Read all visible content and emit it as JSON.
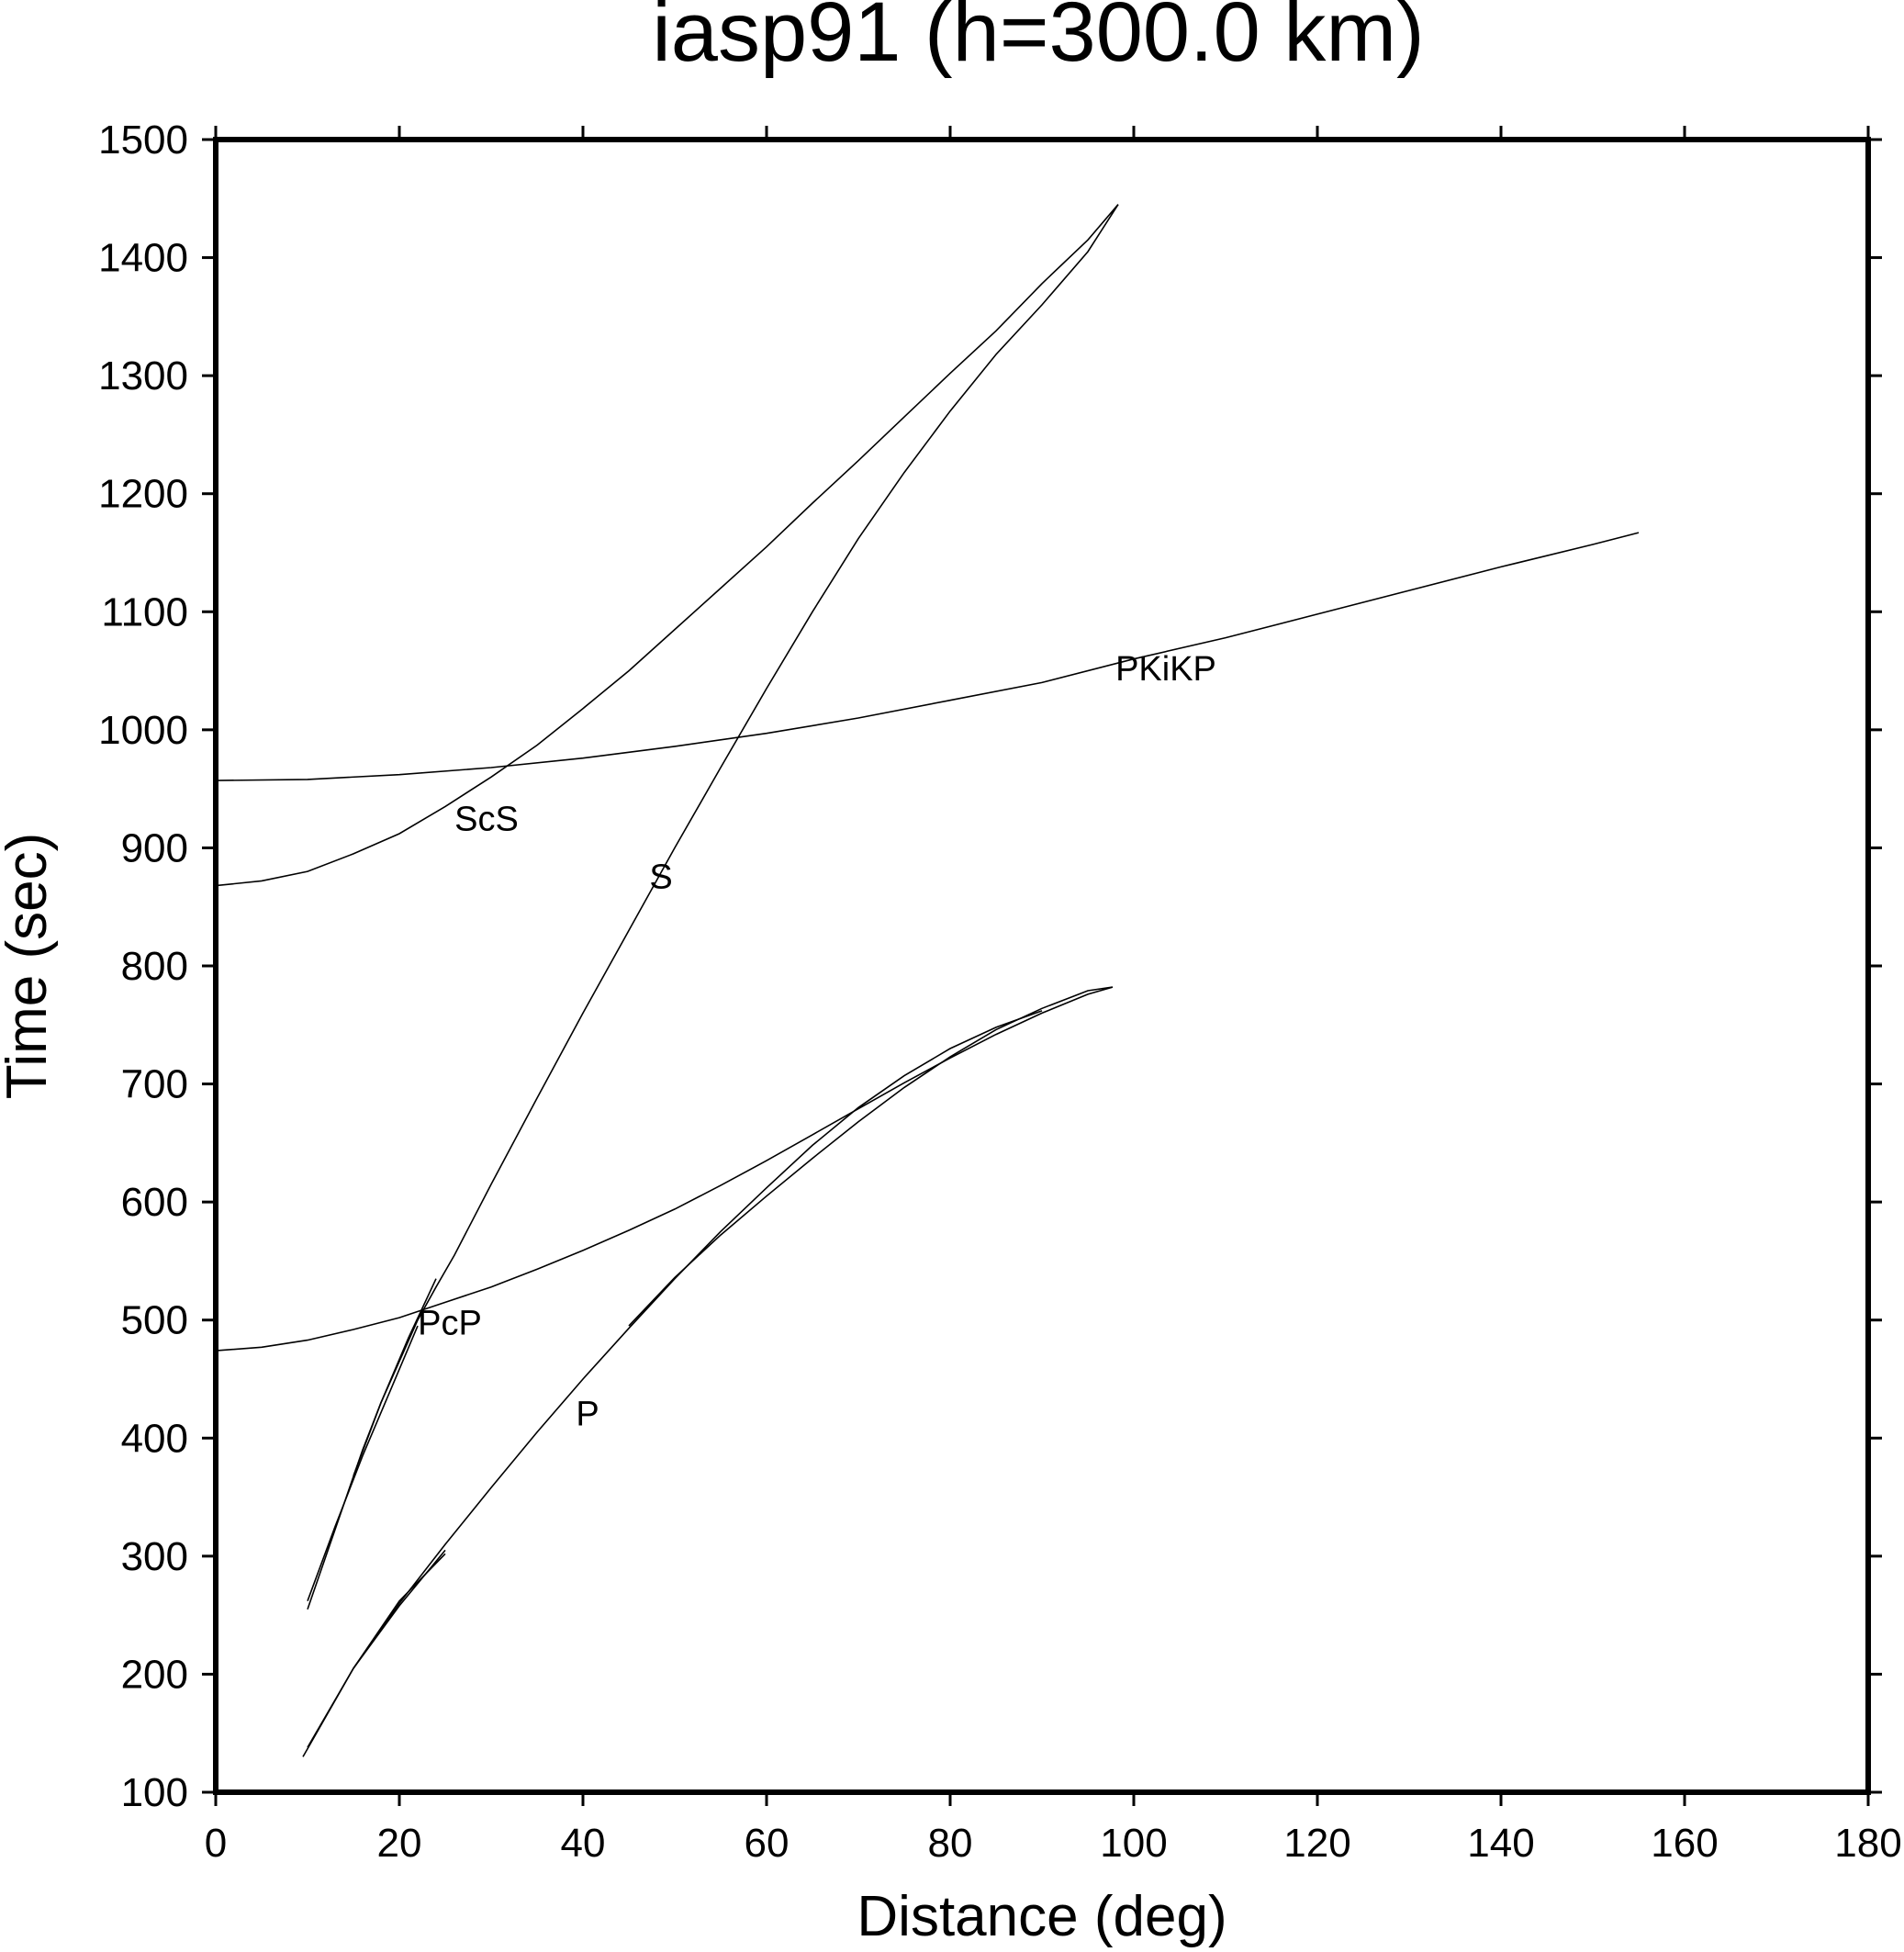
{
  "chart_data": {
    "type": "line",
    "title": "iasp91 (h=300.0 km)",
    "xlabel": "Distance (deg)",
    "ylabel": "Time (sec)",
    "xlim": [
      0,
      180
    ],
    "ylim": [
      100,
      1500
    ],
    "xticks": [
      0,
      20,
      40,
      60,
      80,
      100,
      120,
      140,
      160,
      180
    ],
    "yticks": [
      100,
      200,
      300,
      400,
      500,
      600,
      700,
      800,
      900,
      1000,
      1100,
      1200,
      1300,
      1400,
      1500
    ],
    "grid": false,
    "series": [
      {
        "name": "P",
        "x": [
          9.5,
          15,
          20,
          25,
          30,
          35,
          40,
          45,
          50,
          55,
          60,
          65,
          70,
          75,
          80,
          85,
          90
        ],
        "y": [
          130,
          205,
          260,
          310,
          358,
          405,
          450,
          493,
          535,
          575,
          612,
          648,
          680,
          707,
          730,
          748,
          762
        ]
      },
      {
        "name": "P",
        "x": [
          10,
          15,
          20,
          25
        ],
        "y": [
          138,
          205,
          262,
          302
        ]
      },
      {
        "name": "P",
        "x": [
          15,
          20,
          25
        ],
        "y": [
          205,
          258,
          305
        ]
      },
      {
        "name": "P",
        "x": [
          45,
          50,
          55,
          60,
          65,
          70,
          75,
          80,
          85,
          90,
          95,
          97.7
        ],
        "y": [
          495,
          536,
          572,
          605,
          637,
          668,
          697,
          723,
          746,
          764,
          779,
          782
        ]
      },
      {
        "name": "PcP",
        "x": [
          0,
          5,
          10,
          15,
          20,
          25,
          30,
          35,
          40,
          45,
          50,
          55,
          60,
          65,
          70,
          75,
          80,
          85,
          90,
          95,
          97.7
        ],
        "y": [
          474,
          477,
          483,
          492,
          502,
          515,
          528,
          543,
          559,
          576,
          594,
          614,
          635,
          657,
          679,
          701,
          722,
          742,
          760,
          776,
          782
        ]
      },
      {
        "name": "S",
        "x": [
          10,
          12,
          14,
          16,
          18,
          20,
          22,
          24,
          26,
          30,
          35,
          40,
          45,
          50,
          55,
          60,
          65,
          70,
          75,
          80,
          85,
          90,
          95,
          98.3
        ],
        "y": [
          255,
          300,
          345,
          390,
          430,
          465,
          500,
          528,
          555,
          615,
          688,
          760,
          830,
          900,
          968,
          1035,
          1100,
          1162,
          1218,
          1270,
          1318,
          1360,
          1405,
          1445
        ]
      },
      {
        "name": "S",
        "x": [
          10,
          13,
          16,
          19,
          22
        ],
        "y": [
          262,
          325,
          385,
          440,
          495
        ]
      },
      {
        "name": "S",
        "x": [
          15,
          18,
          21,
          24
        ],
        "y": [
          368,
          430,
          485,
          535
        ]
      },
      {
        "name": "ScS",
        "x": [
          0,
          5,
          10,
          15,
          20,
          25,
          30,
          35,
          40,
          45,
          50,
          55,
          60,
          65,
          70,
          75,
          80,
          85,
          90,
          95,
          98.3
        ],
        "y": [
          868,
          872,
          880,
          895,
          912,
          935,
          960,
          987,
          1018,
          1050,
          1085,
          1120,
          1155,
          1192,
          1228,
          1265,
          1302,
          1338,
          1378,
          1415,
          1445
        ]
      },
      {
        "name": "PKiKP",
        "x": [
          0,
          10,
          20,
          30,
          40,
          50,
          60,
          70,
          80,
          90,
          100,
          110,
          120,
          130,
          140,
          150,
          155
        ],
        "y": [
          957,
          958,
          962,
          968,
          976,
          986,
          997,
          1010,
          1025,
          1040,
          1060,
          1078,
          1098,
          1118,
          1138,
          1157,
          1167
        ]
      }
    ],
    "annotations": [
      {
        "text": "ScS",
        "x": 29.5,
        "y": 925
      },
      {
        "text": "S",
        "x": 48.5,
        "y": 876
      },
      {
        "text": "PKiKP",
        "x": 103.5,
        "y": 1052
      },
      {
        "text": "PcP",
        "x": 25.5,
        "y": 498
      },
      {
        "text": "P",
        "x": 40.5,
        "y": 421
      }
    ]
  }
}
